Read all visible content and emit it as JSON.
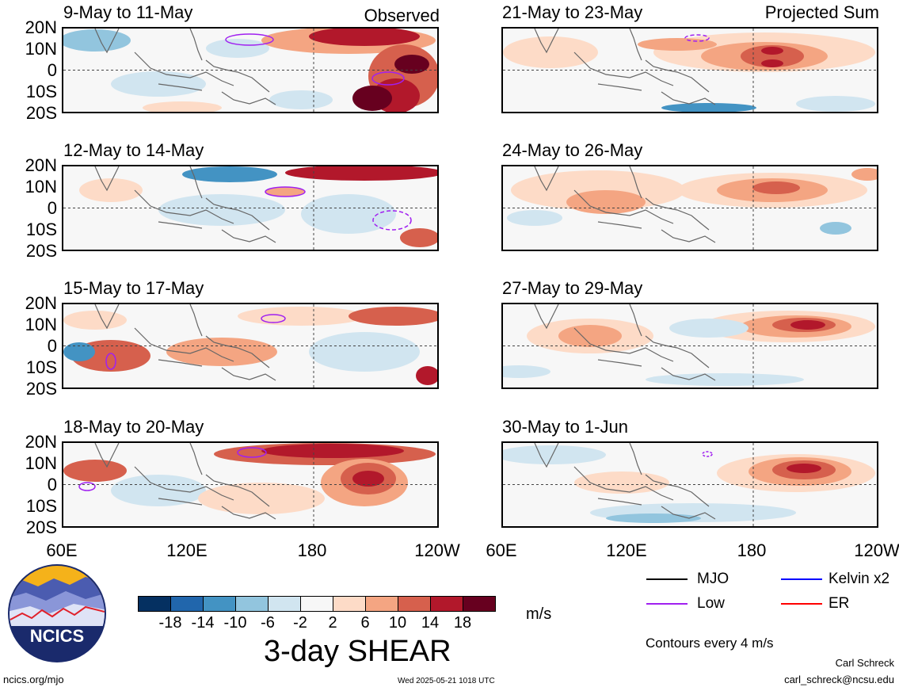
{
  "observed_label": "Observed",
  "projected_label": "Projected Sum",
  "panels_left": [
    {
      "date": "9-May to 11-May"
    },
    {
      "date": "12-May to 14-May"
    },
    {
      "date": "15-May to 17-May"
    },
    {
      "date": "18-May to 20-May"
    }
  ],
  "panels_right": [
    {
      "date": "21-May to 23-May"
    },
    {
      "date": "24-May to 26-May"
    },
    {
      "date": "27-May to 29-May"
    },
    {
      "date": "30-May to 1-Jun"
    }
  ],
  "lat_labels": [
    "20N",
    "10N",
    "0",
    "10S",
    "20S"
  ],
  "lon_labels": [
    "60E",
    "120E",
    "180",
    "120W"
  ],
  "colorbar": {
    "ticks": [
      "-18",
      "-14",
      "-10",
      "-6",
      "-2",
      "2",
      "6",
      "10",
      "14",
      "18"
    ],
    "colors": [
      "#053061",
      "#2166ac",
      "#4393c3",
      "#92c5de",
      "#d1e5f0",
      "#f7f7f7",
      "#fddbc7",
      "#f4a582",
      "#d6604d",
      "#b2182b",
      "#67001f"
    ],
    "units": "m/s",
    "title": "3-day SHEAR"
  },
  "legend": {
    "items": [
      {
        "label": "MJO",
        "color": "#000000"
      },
      {
        "label": "Kelvin x2",
        "color": "#0000ff"
      },
      {
        "label": "Low",
        "color": "#a020f0"
      },
      {
        "label": "ER",
        "color": "#ff0000"
      }
    ],
    "contours_note": "Contours every 4 m/s"
  },
  "logo_text": "NCICS",
  "footer": {
    "left": "ncics.org/mjo",
    "center": "Wed 2025-05-21 1018 UTC",
    "right_name": "Carl Schreck",
    "right_email": "carl_schreck@ncsu.edu"
  }
}
